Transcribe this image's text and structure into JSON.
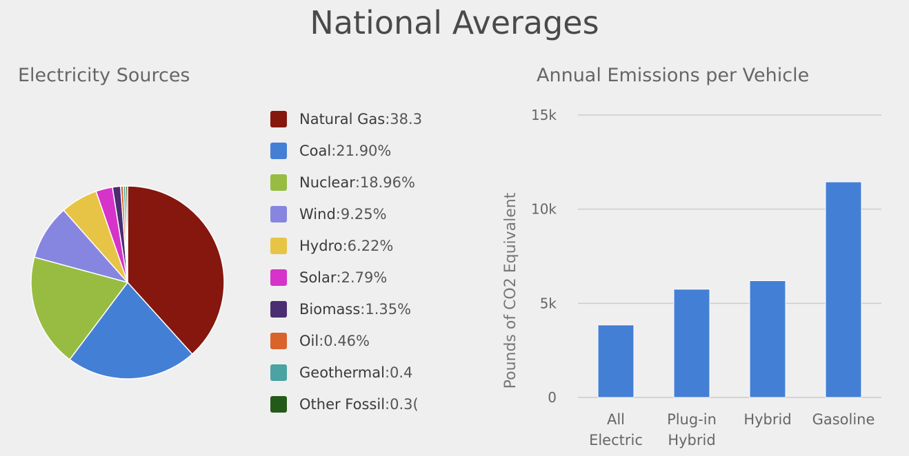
{
  "page": {
    "title": "National Averages"
  },
  "chart_data": [
    {
      "type": "pie",
      "title": "Electricity Sources",
      "legend": "right",
      "slices": [
        {
          "label": "Natural Gas",
          "value": 38.3,
          "value_text": "38.3",
          "color": "#85170f"
        },
        {
          "label": "Coal",
          "value": 21.9,
          "value_text": "21.90%",
          "color": "#447fd6"
        },
        {
          "label": "Nuclear",
          "value": 18.96,
          "value_text": "18.96%",
          "color": "#98bc41"
        },
        {
          "label": "Wind",
          "value": 9.25,
          "value_text": "9.25%",
          "color": "#8686e0"
        },
        {
          "label": "Hydro",
          "value": 6.22,
          "value_text": "6.22%",
          "color": "#e7c446"
        },
        {
          "label": "Solar",
          "value": 2.79,
          "value_text": "2.79%",
          "color": "#d533c9"
        },
        {
          "label": "Biomass",
          "value": 1.35,
          "value_text": "1.35%",
          "color": "#4b2d72"
        },
        {
          "label": "Oil",
          "value": 0.46,
          "value_text": "0.46%",
          "color": "#d9632b"
        },
        {
          "label": "Geothermal",
          "value": 0.4,
          "value_text": "0.4",
          "color": "#4ba3a3"
        },
        {
          "label": "Other Fossil",
          "value": 0.3,
          "value_text": "0.3(",
          "color": "#245a19"
        }
      ]
    },
    {
      "type": "bar",
      "title": "Annual Emissions per Vehicle",
      "ylabel": "Pounds of CO2 Equivalent",
      "xlabel": "",
      "categories": [
        [
          "All",
          "Electric"
        ],
        [
          "Plug-in",
          "Hybrid"
        ],
        [
          "Hybrid"
        ],
        [
          "Gasoline"
        ]
      ],
      "values": [
        3850,
        5750,
        6200,
        11450
      ],
      "ylim": [
        0,
        15000
      ],
      "yticks": [
        0,
        5000,
        10000,
        15000
      ],
      "ytick_labels": [
        "0",
        "5k",
        "10k",
        "15k"
      ],
      "bar_color": "#447fd6",
      "grid": true
    }
  ]
}
